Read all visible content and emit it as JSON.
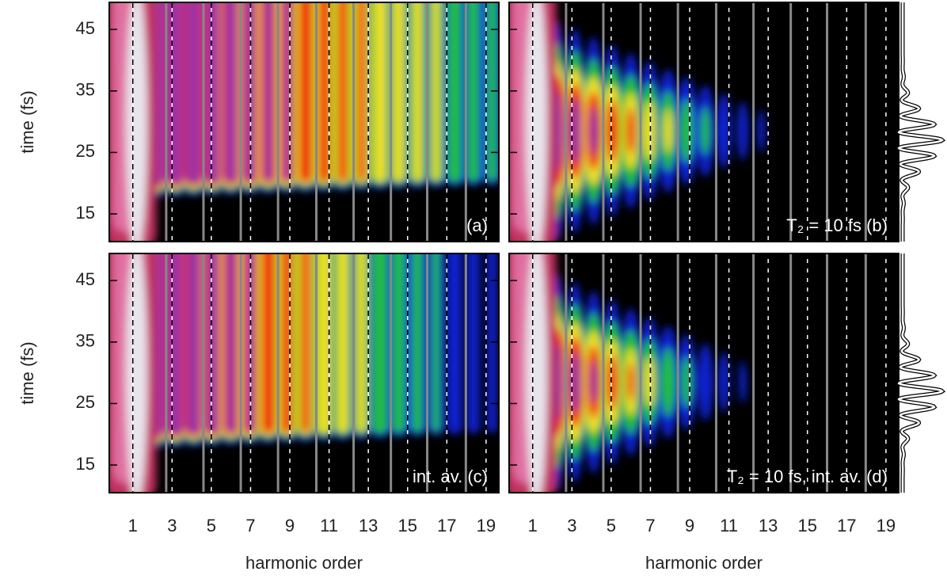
{
  "chart_data": [
    {
      "type": "heatmap",
      "annotation": "(a)",
      "ylabel": "time (fs)",
      "xlim": [
        -0.2,
        19.65
      ],
      "ylim": [
        10.5,
        49.4
      ],
      "xticks": [
        1,
        3,
        5,
        7,
        9,
        11,
        13,
        15,
        17,
        19
      ],
      "yticks": [
        15,
        25,
        35,
        45
      ],
      "gray_lines": [
        2.7,
        4.6,
        6.5,
        8.4,
        10.35,
        12.25,
        14.15,
        16.0,
        17.97
      ]
    },
    {
      "type": "heatmap",
      "annotation": "T₂ = 10 fs  (b)",
      "xlim": [
        -0.2,
        19.65
      ],
      "ylim": [
        10.5,
        49.4
      ],
      "xticks": [
        1,
        3,
        5,
        7,
        9,
        11,
        13,
        15,
        17,
        19
      ],
      "yticks": [
        15,
        25,
        35,
        45
      ],
      "gray_lines": [
        2.7,
        4.6,
        6.5,
        8.4,
        10.35,
        12.25,
        14.15,
        16.0,
        17.97
      ]
    },
    {
      "type": "heatmap",
      "annotation": "int. av.  (c)",
      "ylabel": "time (fs)",
      "xlabel": "harmonic order",
      "xlim": [
        -0.2,
        19.65
      ],
      "ylim": [
        10.5,
        49.4
      ],
      "xticks": [
        1,
        3,
        5,
        7,
        9,
        11,
        13,
        15,
        17,
        19
      ],
      "yticks": [
        15,
        25,
        35,
        45
      ],
      "gray_lines": [
        2.7,
        4.6,
        6.5,
        8.4,
        10.35,
        12.25,
        14.15,
        16.0,
        17.97
      ]
    },
    {
      "type": "heatmap",
      "annotation": "T₂ = 10 fs, int. av.  (d)",
      "xlabel": "harmonic order",
      "xlim": [
        -0.2,
        19.65
      ],
      "ylim": [
        10.5,
        49.4
      ],
      "xticks": [
        1,
        3,
        5,
        7,
        9,
        11,
        13,
        15,
        17,
        19
      ],
      "yticks": [
        15,
        25,
        35,
        45
      ],
      "gray_lines": [
        2.7,
        4.6,
        6.5,
        8.4,
        10.35,
        12.25,
        14.15,
        16.0,
        17.97
      ]
    }
  ]
}
